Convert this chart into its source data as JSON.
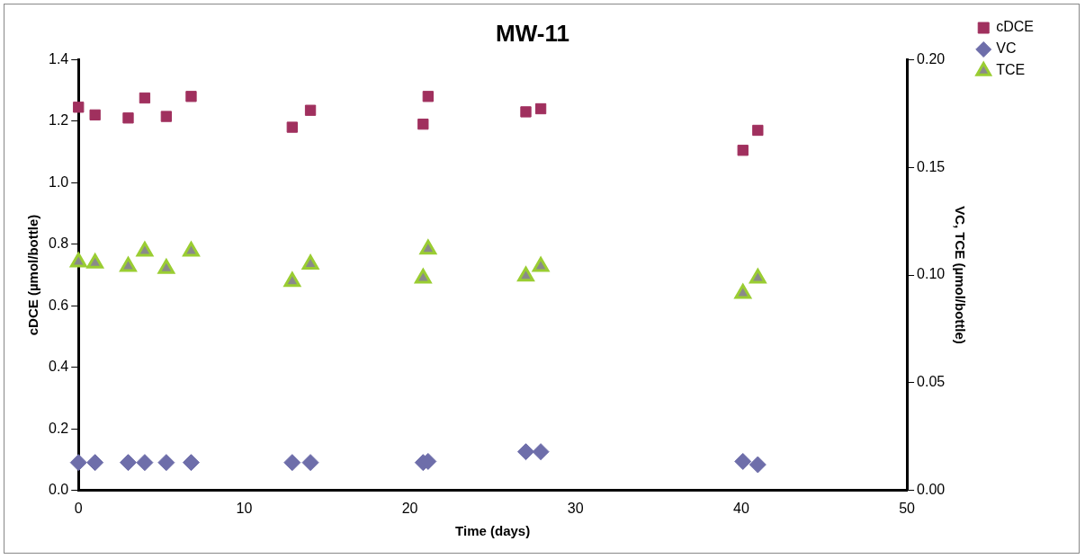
{
  "chart_data": {
    "type": "scatter",
    "title": "MW-11",
    "xlabel": "Time (days)",
    "ylabel": "cDCE (µmol/bottle)",
    "y2label": "VC, TCE (µmol/bottle)",
    "xlim": [
      0,
      50
    ],
    "xticks": [
      0,
      10,
      20,
      30,
      40,
      50
    ],
    "ylim": [
      0,
      1.4
    ],
    "yticks": [
      {
        "value": 0,
        "label": "0.0"
      },
      {
        "value": 0.2,
        "label": "0.2"
      },
      {
        "value": 0.4,
        "label": "0.4"
      },
      {
        "value": 0.6,
        "label": "0.6"
      },
      {
        "value": 0.8,
        "label": "0.8"
      },
      {
        "value": 1,
        "label": "1.0"
      },
      {
        "value": 1.2,
        "label": "1.2"
      },
      {
        "value": 1.4,
        "label": "1.4"
      }
    ],
    "y2lim": [
      0,
      0.2
    ],
    "y2ticks": [
      {
        "value": 0,
        "label": "0.00"
      },
      {
        "value": 0.05,
        "label": "0.05"
      },
      {
        "value": 0.1,
        "label": "0.10"
      },
      {
        "value": 0.15,
        "label": "0.15"
      },
      {
        "value": 0.2,
        "label": "0.20"
      }
    ],
    "grid": false,
    "legend": "right",
    "x": [
      0,
      1,
      3,
      4,
      5.3,
      6.8,
      12.9,
      14,
      20.8,
      21.1,
      27,
      27.9,
      40.1,
      41
    ],
    "series": [
      {
        "name": "cDCE",
        "color": "#a0305e",
        "marker": "square",
        "values": [
          1.245,
          1.22,
          1.21,
          1.275,
          1.215,
          1.28,
          1.18,
          1.235,
          1.19,
          1.28,
          1.23,
          1.24,
          1.105,
          1.17
        ]
      },
      {
        "name": "VC",
        "color": "#6e6eaa",
        "marker": "diamond",
        "axis": "y2",
        "values": [
          0.013,
          0.013,
          0.013,
          0.013,
          0.013,
          0.013,
          0.013,
          0.013,
          0.013,
          0.0135,
          0.018,
          0.018,
          0.0135,
          0.012
        ]
      },
      {
        "name": "TCE",
        "color": "#9acd32",
        "marker": "triangle",
        "axis": "y2",
        "values": [
          0.106,
          0.1055,
          0.104,
          0.111,
          0.103,
          0.111,
          0.097,
          0.105,
          0.0985,
          0.112,
          0.0995,
          0.104,
          0.0915,
          0.0985
        ]
      }
    ]
  }
}
